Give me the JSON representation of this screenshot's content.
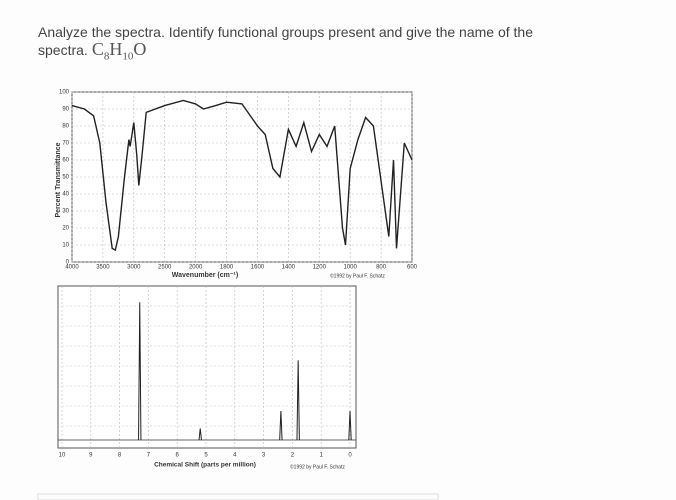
{
  "question": {
    "text": "Analyze the spectra. Identify functional groups present and give the name of the spectra.",
    "formula": [
      "C",
      "8",
      "H",
      "10",
      "O"
    ]
  },
  "ir_spectrum": {
    "type": "line",
    "y_label": "Percent Transmittance",
    "x_label": "Wavenumber (cm⁻¹)",
    "credit": "©1992 by Paul F. Schatz",
    "x": [
      4000,
      3800,
      3650,
      3550,
      3450,
      3350,
      3300,
      3250,
      3150,
      3080,
      3060,
      3030,
      3000,
      2950,
      2920,
      2870,
      2800,
      2500,
      2200,
      2000,
      1950,
      1870,
      1800,
      1700,
      1600,
      1550,
      1500,
      1455,
      1400,
      1350,
      1300,
      1250,
      1200,
      1150,
      1100,
      1050,
      1030,
      1000,
      950,
      900,
      850,
      750,
      720,
      700,
      650,
      600
    ],
    "values": [
      92,
      90,
      86,
      70,
      35,
      8,
      7,
      15,
      50,
      72,
      68,
      75,
      82,
      62,
      45,
      62,
      88,
      92,
      95,
      93,
      90,
      92,
      94,
      93,
      80,
      75,
      55,
      50,
      78,
      68,
      82,
      65,
      75,
      68,
      80,
      20,
      10,
      55,
      72,
      85,
      80,
      15,
      60,
      8,
      70,
      60
    ],
    "color": "#222222",
    "xlim": [
      4000,
      600
    ],
    "xticks": [
      4000,
      3500,
      3000,
      2500,
      2000,
      1800,
      1600,
      1400,
      1200,
      1000,
      800,
      600
    ],
    "ylim": [
      0,
      100
    ],
    "yticks": [
      0,
      10,
      20,
      30,
      40,
      50,
      60,
      70,
      80,
      90,
      100
    ],
    "grid": true
  },
  "nmr_spectrum": {
    "type": "stick",
    "x_label": "Chemical Shift (parts per million)",
    "credit": "©1992 by Paul F. Schatz",
    "x": [
      7.3,
      5.2,
      2.4,
      1.8,
      0
    ],
    "values": [
      95,
      8,
      20,
      55,
      20
    ],
    "color": "#222222",
    "xlim": [
      10,
      0
    ],
    "xticks": [
      10,
      9,
      8,
      7,
      6,
      5,
      4,
      3,
      2,
      1,
      0
    ],
    "ylim": [
      0,
      100
    ],
    "grid": true
  }
}
